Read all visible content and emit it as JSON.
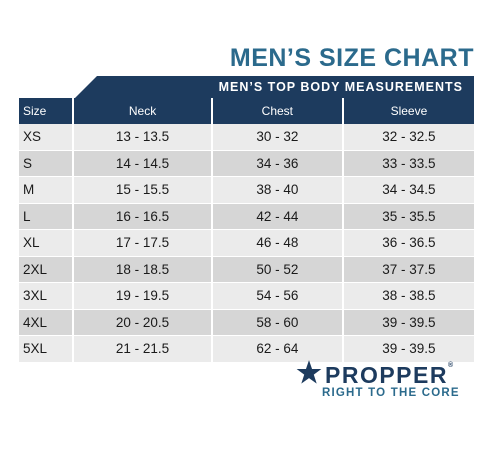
{
  "title": "MEN’S SIZE CHART",
  "banner": "MEN’S TOP BODY MEASUREMENTS",
  "colors": {
    "navy": "#1d3b5e",
    "title_blue": "#2b6a8c",
    "row_light": "#ebebeb",
    "row_dark": "#d6d6d6"
  },
  "table": {
    "headers": [
      "Size",
      "Neck",
      "Chest",
      "Sleeve"
    ],
    "rows": [
      [
        "XS",
        "13 - 13.5",
        "30 - 32",
        "32 - 32.5"
      ],
      [
        "S",
        "14 - 14.5",
        "34 - 36",
        "33 - 33.5"
      ],
      [
        "M",
        "15 - 15.5",
        "38 - 40",
        "34 - 34.5"
      ],
      [
        "L",
        "16 - 16.5",
        "42 - 44",
        "35 - 35.5"
      ],
      [
        "XL",
        "17 - 17.5",
        "46 - 48",
        "36 - 36.5"
      ],
      [
        "2XL",
        "18 - 18.5",
        "50 - 52",
        "37 - 37.5"
      ],
      [
        "3XL",
        "19 - 19.5",
        "54 - 56",
        "38 - 38.5"
      ],
      [
        "4XL",
        "20 - 20.5",
        "58 - 60",
        "39 - 39.5"
      ],
      [
        "5XL",
        "21 - 21.5",
        "62 - 64",
        "39 - 39.5"
      ]
    ]
  },
  "logo": {
    "icon": "star-icon",
    "wordmark": "PROPPER",
    "registered": "®",
    "tagline": "RIGHT TO THE CORE"
  }
}
